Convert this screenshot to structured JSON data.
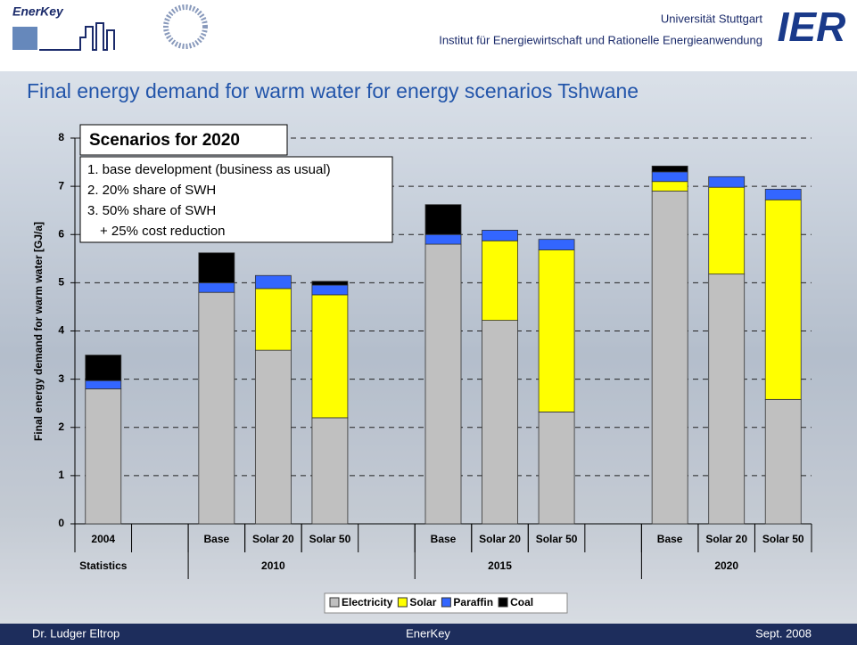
{
  "header": {
    "logo_text": "EnerKey",
    "university": "Universität Stuttgart",
    "institute": "Institut für Energiewirtschaft und Rationelle Energieanwendung",
    "institute_short": "IER"
  },
  "chart_data": {
    "type": "stacked-bar",
    "title": "Final energy demand for warm water for energy scenarios Tshwane",
    "y_label": "Final energy demand for warm water [GJ/a]",
    "categories": [
      "2004",
      null,
      "Base",
      "Solar 20",
      "Solar 50",
      null,
      "Base",
      "Solar 20",
      "Solar 50",
      null,
      "Base",
      "Solar 20",
      "Solar 50"
    ],
    "groups": [
      "Statistics",
      "2010",
      "2015",
      "2020"
    ],
    "series": [
      {
        "name": "Electricity",
        "color": "#c0c0c0",
        "values": [
          2.8,
          null,
          4.8,
          3.6,
          2.2,
          null,
          5.8,
          4.22,
          2.32,
          null,
          6.9,
          5.18,
          2.58
        ]
      },
      {
        "name": "Solar",
        "color": "#ffff00",
        "values": [
          0,
          null,
          0,
          1.28,
          2.55,
          null,
          0,
          1.65,
          3.36,
          null,
          0.2,
          1.8,
          4.14
        ]
      },
      {
        "name": "Paraffin",
        "color": "#3366ff",
        "values": [
          0.17,
          null,
          0.2,
          0.27,
          0.2,
          null,
          0.2,
          0.22,
          0.22,
          null,
          0.2,
          0.22,
          0.22
        ]
      },
      {
        "name": "Coal",
        "color": "#000000",
        "values": [
          0.53,
          null,
          0.62,
          0,
          0.08,
          null,
          0.62,
          0,
          0,
          null,
          0.12,
          0,
          0
        ]
      }
    ],
    "ylim": [
      0,
      8
    ],
    "yticks": [
      0,
      1,
      2,
      3,
      4,
      5,
      6,
      7,
      8
    ],
    "grid": true,
    "annotation": {
      "title": "Scenarios for 2020",
      "lines": [
        "1. base development (business as usual)",
        "2. 20% share of SWH",
        "3. 50% share of SWH",
        "+ 25% cost reduction"
      ]
    }
  },
  "footer": {
    "left": "Dr. Ludger Eltrop",
    "center": "EnerKey",
    "right": "Sept. 2008"
  }
}
